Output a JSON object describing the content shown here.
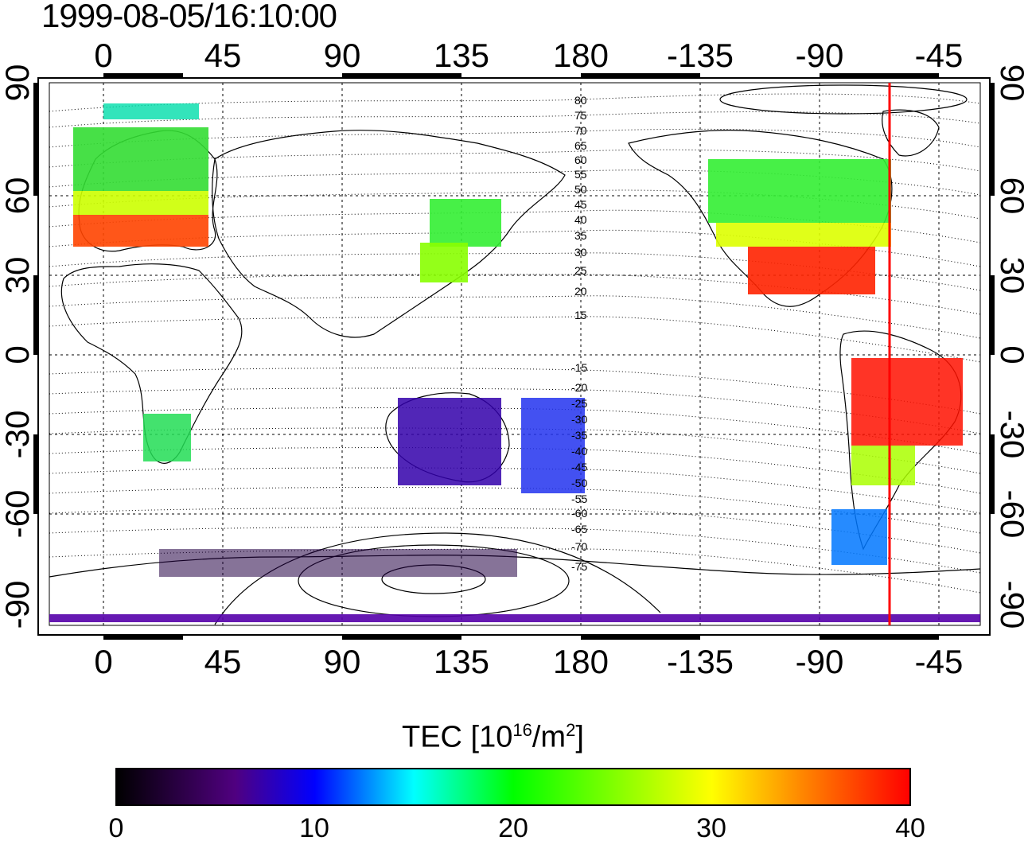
{
  "title": "1999-08-05/16:10:00",
  "map": {
    "lon_ticks": [
      "0",
      "45",
      "90",
      "135",
      "180",
      "-135",
      "-90",
      "-45"
    ],
    "lat_ticks_left": [
      "90",
      "60",
      "30",
      "0",
      "-30",
      "-60",
      "-90"
    ],
    "lat_ticks_right": [
      "90",
      "60",
      "30",
      "0",
      "-30",
      "-60",
      "-90"
    ],
    "contour_labels_north": [
      "80",
      "75",
      "70",
      "65",
      "60",
      "55",
      "50",
      "45",
      "40",
      "35",
      "30",
      "25",
      "20",
      "15"
    ],
    "contour_labels_south": [
      "-15",
      "-20",
      "-25",
      "-30",
      "-35",
      "-40",
      "-45",
      "-50",
      "-55",
      "-60",
      "-65",
      "-70",
      "-75"
    ],
    "terminator_color": "#ff0000"
  },
  "colorbar": {
    "title_text": "TEC  [10",
    "title_exp": "16",
    "title_unit": "/m",
    "title_exp2": "2",
    "title_close": "]",
    "ticks": [
      "0",
      "10",
      "20",
      "30",
      "40"
    ],
    "colors": [
      "#000000",
      "#500080",
      "#0000ff",
      "#00ffff",
      "#00ff00",
      "#ffff00",
      "#ff8000",
      "#ff0000"
    ]
  }
}
